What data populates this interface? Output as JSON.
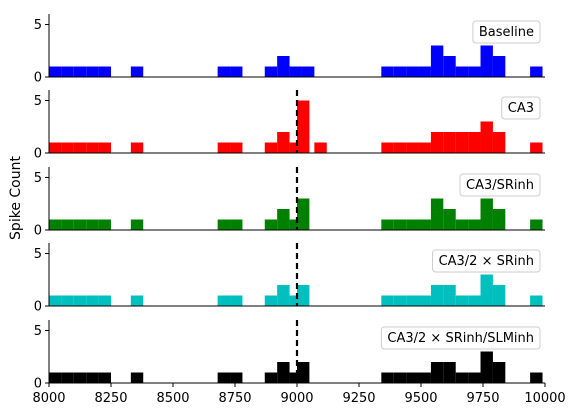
{
  "chart_data": {
    "type": "bar",
    "xlim": [
      8000,
      10000
    ],
    "ylim": [
      0,
      6
    ],
    "ylabel": "Spike Count",
    "x_ticks": [
      8000,
      8250,
      8500,
      8750,
      9000,
      9250,
      9500,
      9750,
      10000
    ],
    "y_ticks": [
      0,
      5
    ],
    "bin_width": 50,
    "marker_x": 9000,
    "panels": [
      {
        "name": "Baseline",
        "color": "#0000ff",
        "show_marker": false,
        "bins": [
          [
            8000,
            1
          ],
          [
            8050,
            1
          ],
          [
            8100,
            1
          ],
          [
            8150,
            1
          ],
          [
            8200,
            1
          ],
          [
            8330,
            1
          ],
          [
            8680,
            1
          ],
          [
            8730,
            1
          ],
          [
            8870,
            1
          ],
          [
            8920,
            2
          ],
          [
            8970,
            1
          ],
          [
            9020,
            1
          ],
          [
            9340,
            1
          ],
          [
            9390,
            1
          ],
          [
            9440,
            1
          ],
          [
            9490,
            1
          ],
          [
            9540,
            3
          ],
          [
            9590,
            2
          ],
          [
            9640,
            1
          ],
          [
            9690,
            1
          ],
          [
            9740,
            3
          ],
          [
            9790,
            2
          ],
          [
            9850,
            0
          ],
          [
            9940,
            1
          ]
        ]
      },
      {
        "name": "CA3",
        "color": "#ff0000",
        "show_marker": true,
        "bins": [
          [
            8000,
            1
          ],
          [
            8050,
            1
          ],
          [
            8100,
            1
          ],
          [
            8150,
            1
          ],
          [
            8200,
            1
          ],
          [
            8330,
            1
          ],
          [
            8680,
            1
          ],
          [
            8730,
            1
          ],
          [
            8870,
            1
          ],
          [
            8920,
            2
          ],
          [
            8970,
            1
          ],
          [
            9000,
            5
          ],
          [
            9070,
            1
          ],
          [
            9340,
            1
          ],
          [
            9390,
            1
          ],
          [
            9440,
            1
          ],
          [
            9490,
            1
          ],
          [
            9540,
            2
          ],
          [
            9590,
            2
          ],
          [
            9640,
            2
          ],
          [
            9690,
            2
          ],
          [
            9740,
            3
          ],
          [
            9790,
            2
          ],
          [
            9850,
            0
          ],
          [
            9940,
            1
          ]
        ]
      },
      {
        "name": "CA3/SRinh",
        "color": "#008000",
        "show_marker": true,
        "bins": [
          [
            8000,
            1
          ],
          [
            8050,
            1
          ],
          [
            8100,
            1
          ],
          [
            8150,
            1
          ],
          [
            8200,
            1
          ],
          [
            8330,
            1
          ],
          [
            8680,
            1
          ],
          [
            8730,
            1
          ],
          [
            8870,
            1
          ],
          [
            8920,
            2
          ],
          [
            8970,
            1
          ],
          [
            9000,
            3
          ],
          [
            9340,
            1
          ],
          [
            9390,
            1
          ],
          [
            9440,
            1
          ],
          [
            9490,
            1
          ],
          [
            9540,
            3
          ],
          [
            9590,
            2
          ],
          [
            9640,
            1
          ],
          [
            9690,
            1
          ],
          [
            9740,
            3
          ],
          [
            9790,
            2
          ],
          [
            9850,
            0
          ],
          [
            9940,
            1
          ]
        ]
      },
      {
        "name": "CA3/2 × SRinh",
        "color": "#00bfbf",
        "show_marker": true,
        "bins": [
          [
            8000,
            1
          ],
          [
            8050,
            1
          ],
          [
            8100,
            1
          ],
          [
            8150,
            1
          ],
          [
            8200,
            1
          ],
          [
            8330,
            1
          ],
          [
            8680,
            1
          ],
          [
            8730,
            1
          ],
          [
            8870,
            1
          ],
          [
            8920,
            2
          ],
          [
            8970,
            1
          ],
          [
            9000,
            2
          ],
          [
            9340,
            1
          ],
          [
            9390,
            1
          ],
          [
            9440,
            1
          ],
          [
            9490,
            1
          ],
          [
            9540,
            2
          ],
          [
            9590,
            2
          ],
          [
            9640,
            1
          ],
          [
            9690,
            1
          ],
          [
            9740,
            3
          ],
          [
            9790,
            2
          ],
          [
            9850,
            0
          ],
          [
            9940,
            1
          ]
        ]
      },
      {
        "name": "CA3/2 × SRinh/SLMinh",
        "color": "#000000",
        "show_marker": true,
        "bins": [
          [
            8000,
            1
          ],
          [
            8050,
            1
          ],
          [
            8100,
            1
          ],
          [
            8150,
            1
          ],
          [
            8200,
            1
          ],
          [
            8330,
            1
          ],
          [
            8680,
            1
          ],
          [
            8730,
            1
          ],
          [
            8870,
            1
          ],
          [
            8920,
            2
          ],
          [
            8970,
            1
          ],
          [
            9000,
            2
          ],
          [
            9340,
            1
          ],
          [
            9390,
            1
          ],
          [
            9440,
            1
          ],
          [
            9490,
            1
          ],
          [
            9540,
            2
          ],
          [
            9590,
            2
          ],
          [
            9640,
            1
          ],
          [
            9690,
            1
          ],
          [
            9740,
            3
          ],
          [
            9790,
            2
          ],
          [
            9850,
            0
          ],
          [
            9940,
            1
          ]
        ]
      }
    ]
  }
}
